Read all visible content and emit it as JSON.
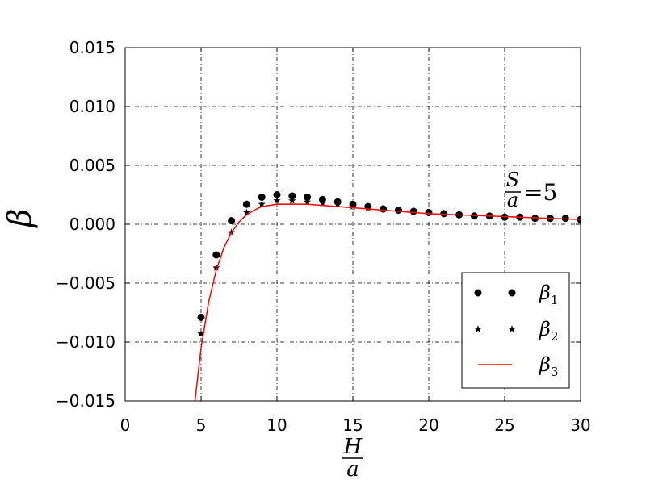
{
  "chart_data": {
    "type": "scatter",
    "xlim": [
      0,
      30
    ],
    "ylim": [
      -0.015,
      0.015
    ],
    "x_ticks": [
      0,
      5,
      10,
      15,
      20,
      25,
      30
    ],
    "y_ticks": [
      -0.015,
      -0.01,
      -0.005,
      0.0,
      0.005,
      0.01,
      0.015
    ],
    "x_tick_labels": [
      "0",
      "5",
      "10",
      "15",
      "20",
      "25",
      "30"
    ],
    "y_tick_labels": [
      "−0.015",
      "−0.010",
      "−0.005",
      "0.000",
      "0.005",
      "0.010",
      "0.015"
    ],
    "xlabel": {
      "numerator": "H",
      "denominator": "a"
    },
    "ylabel": "β",
    "annotation": {
      "numerator": "S",
      "denominator": "a",
      "rest": "=5"
    },
    "grid": true,
    "grid_style": "dash-dot",
    "legend": "bottom-right",
    "series": [
      {
        "name": "β",
        "name_sub": "1",
        "marker": "circle",
        "color": "#000000",
        "x": [
          5,
          6,
          7,
          8,
          9,
          10,
          11,
          12,
          13,
          14,
          15,
          16,
          17,
          18,
          19,
          20,
          21,
          22,
          23,
          24,
          25,
          26,
          27,
          28,
          29,
          30
        ],
        "y": [
          -0.0079,
          -0.0026,
          0.0003,
          0.0017,
          0.0023,
          0.0025,
          0.0024,
          0.0023,
          0.0021,
          0.0019,
          0.0017,
          0.0015,
          0.0013,
          0.0012,
          0.0011,
          0.001,
          0.0009,
          0.0008,
          0.0007,
          0.0007,
          0.0006,
          0.0006,
          0.0005,
          0.0005,
          0.0005,
          0.0004
        ]
      },
      {
        "name": "β",
        "name_sub": "2",
        "marker": "star",
        "color": "#000000",
        "x": [
          5,
          6,
          7,
          8,
          9,
          10,
          11,
          12,
          13,
          14,
          15,
          16,
          17,
          18,
          19,
          20,
          21,
          22,
          23,
          24,
          25,
          26,
          27,
          28,
          29,
          30
        ],
        "y": [
          -0.0093,
          -0.0037,
          -0.0007,
          0.001,
          0.0017,
          0.002,
          0.002,
          0.0019,
          0.0018,
          0.0017,
          0.0015,
          0.0014,
          0.0013,
          0.0012,
          0.0011,
          0.001,
          0.0009,
          0.0008,
          0.0007,
          0.0007,
          0.0006,
          0.0006,
          0.0005,
          0.0005,
          0.0005,
          0.0004
        ]
      },
      {
        "name": "β",
        "name_sub": "3",
        "marker": "line",
        "color": "#ff0000",
        "x": [
          4.6,
          5,
          5.5,
          6,
          6.5,
          7,
          7.5,
          8,
          8.5,
          9,
          9.5,
          10,
          11,
          12,
          13,
          14,
          15,
          16,
          18,
          20,
          22,
          24,
          26,
          28,
          30
        ],
        "y": [
          -0.015,
          -0.0105,
          -0.0066,
          -0.0039,
          -0.002,
          -0.0007,
          0.0002,
          0.0008,
          0.0012,
          0.0015,
          0.0016,
          0.0017,
          0.0017,
          0.0017,
          0.0016,
          0.0015,
          0.0014,
          0.0013,
          0.0011,
          0.0009,
          0.0008,
          0.0007,
          0.0006,
          0.0005,
          0.0004
        ]
      }
    ]
  }
}
